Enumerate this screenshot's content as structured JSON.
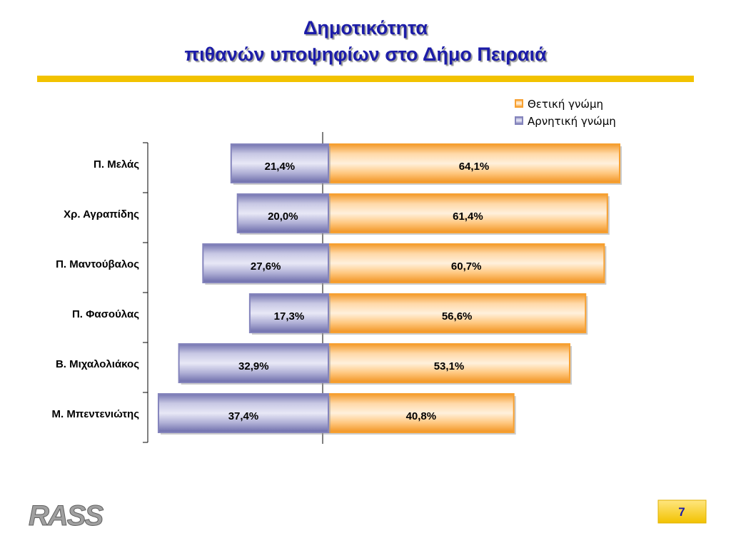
{
  "chart_data": {
    "type": "diverging-bar",
    "title": "Δημοτικότητα",
    "subtitle": "πιθανών υποψηφίων στο Δήμο Πειραιά",
    "categories": [
      "Π. Μελάς",
      "Χρ. Αγραπίδης",
      "Π. Μαντούβαλος",
      "Π. Φασούλας",
      "Β. Μιχαλολιάκος",
      "Μ. Μπεντενιώτης"
    ],
    "series": [
      {
        "name": "Θετική γνώμη",
        "color": "#f7a030",
        "side": "right",
        "values": [
          64.1,
          61.4,
          60.7,
          56.6,
          53.1,
          40.8
        ],
        "value_labels": [
          "64,1%",
          "61,4%",
          "60,7%",
          "56,6%",
          "53,1%",
          "40,8%"
        ]
      },
      {
        "name": "Αρνητική γνώμη",
        "color": "#8484bc",
        "side": "left",
        "values": [
          21.4,
          20.0,
          27.6,
          17.3,
          32.9,
          37.4
        ],
        "value_labels": [
          "21,4%",
          "20,0%",
          "27,6%",
          "17,3%",
          "32,9%",
          "37,4%"
        ]
      }
    ]
  },
  "logo": "RASS",
  "page_number": "7"
}
